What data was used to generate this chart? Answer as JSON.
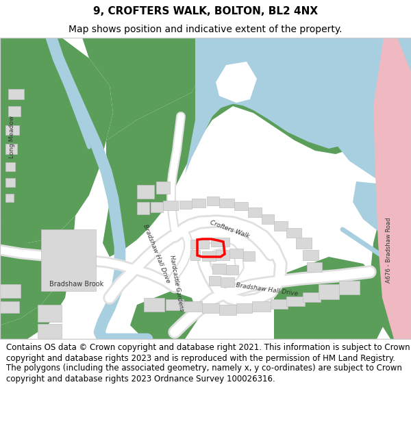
{
  "title_line1": "9, CROFTERS WALK, BOLTON, BL2 4NX",
  "title_line2": "Map shows position and indicative extent of the property.",
  "title_fontsize": 11,
  "subtitle_fontsize": 10,
  "footer_text": "Contains OS data © Crown copyright and database right 2021. This information is subject to Crown copyright and database rights 2023 and is reproduced with the permission of HM Land Registry. The polygons (including the associated geometry, namely x, y co-ordinates) are subject to Crown copyright and database rights 2023 Ordnance Survey 100026316.",
  "footer_fontsize": 8.5,
  "bg_color": "#ffffff",
  "green_color": "#5a9e5a",
  "water_color": "#a8cfe0",
  "road_color": "#ffffff",
  "building_color": "#d8d8d8",
  "highlight_color": "#ff0000",
  "pink_road": "#f0b8c0",
  "map_bg": "#ffffff"
}
